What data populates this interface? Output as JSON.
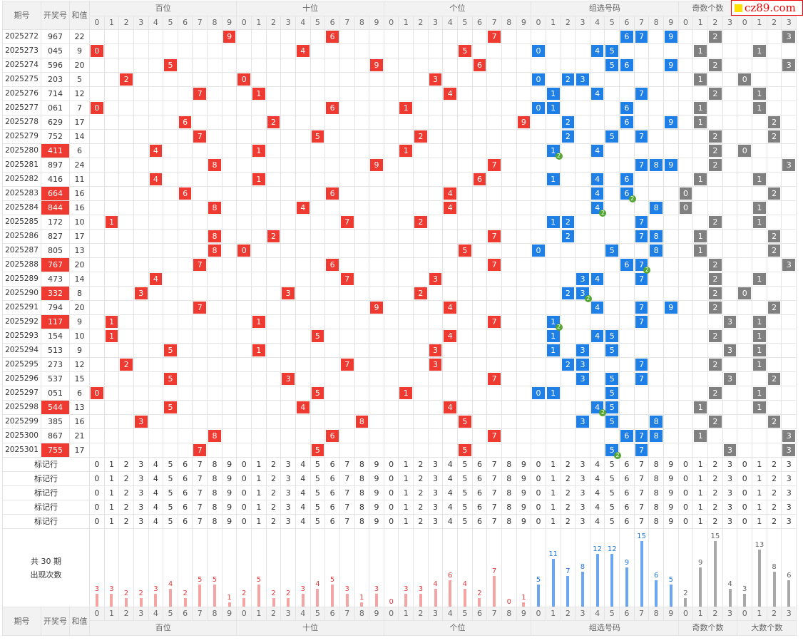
{
  "logo": {
    "text": "cz89.com"
  },
  "header": {
    "col_period": "期号",
    "col_number": "开奖号",
    "col_sum": "和值",
    "groups": [
      "百位",
      "十位",
      "个位",
      "组选号码",
      "奇数个数"
    ],
    "groups_bottom": [
      "百位",
      "十位",
      "个位",
      "组选号码",
      "奇数个数",
      "大数个数"
    ],
    "digits10": [
      "0",
      "1",
      "2",
      "3",
      "4",
      "5",
      "6",
      "7",
      "8",
      "9"
    ],
    "digits4": [
      "0",
      "1",
      "2",
      "3"
    ]
  },
  "rows": [
    {
      "period": "2025272",
      "number": "967",
      "sum": "22",
      "red": false,
      "b": 9,
      "s": 6,
      "g": 7,
      "grp": [
        6,
        7,
        9
      ],
      "dbl": null,
      "odd": 2,
      "big": 3
    },
    {
      "period": "2025273",
      "number": "045",
      "sum": "9",
      "red": false,
      "b": 0,
      "s": 4,
      "g": 5,
      "grp": [
        0,
        4,
        5
      ],
      "dbl": null,
      "odd": 1,
      "big": 1
    },
    {
      "period": "2025274",
      "number": "596",
      "sum": "20",
      "red": false,
      "b": 5,
      "s": 9,
      "g": 6,
      "grp": [
        5,
        6,
        9
      ],
      "dbl": null,
      "odd": 2,
      "big": 3
    },
    {
      "period": "2025275",
      "number": "203",
      "sum": "5",
      "red": false,
      "b": 2,
      "s": 0,
      "g": 3,
      "grp": [
        0,
        2,
        3
      ],
      "dbl": null,
      "odd": 1,
      "big": 0
    },
    {
      "period": "2025276",
      "number": "714",
      "sum": "12",
      "red": false,
      "b": 7,
      "s": 1,
      "g": 4,
      "grp": [
        1,
        4,
        7
      ],
      "dbl": null,
      "odd": 2,
      "big": 1
    },
    {
      "period": "2025277",
      "number": "061",
      "sum": "7",
      "red": false,
      "b": 0,
      "s": 6,
      "g": 1,
      "grp": [
        0,
        1,
        6
      ],
      "dbl": null,
      "odd": 1,
      "big": 1
    },
    {
      "period": "2025278",
      "number": "629",
      "sum": "17",
      "red": false,
      "b": 6,
      "s": 2,
      "g": 9,
      "grp": [
        2,
        6,
        9
      ],
      "dbl": null,
      "odd": 1,
      "big": 2
    },
    {
      "period": "2025279",
      "number": "752",
      "sum": "14",
      "red": false,
      "b": 7,
      "s": 5,
      "g": 2,
      "grp": [
        2,
        5,
        7
      ],
      "dbl": null,
      "odd": 2,
      "big": 2
    },
    {
      "period": "2025280",
      "number": "411",
      "sum": "6",
      "red": true,
      "b": 4,
      "s": 1,
      "g": 1,
      "grp": [
        1,
        4
      ],
      "dbl": 1,
      "odd": 2,
      "big": 0
    },
    {
      "period": "2025281",
      "number": "897",
      "sum": "24",
      "red": false,
      "b": 8,
      "s": 9,
      "g": 7,
      "grp": [
        7,
        8,
        9
      ],
      "dbl": null,
      "odd": 2,
      "big": 3
    },
    {
      "period": "2025282",
      "number": "416",
      "sum": "11",
      "red": false,
      "b": 4,
      "s": 1,
      "g": 6,
      "grp": [
        1,
        4,
        6
      ],
      "dbl": null,
      "odd": 1,
      "big": 1
    },
    {
      "period": "2025283",
      "number": "664",
      "sum": "16",
      "red": true,
      "b": 6,
      "s": 6,
      "g": 4,
      "grp": [
        4,
        6
      ],
      "dbl": 6,
      "odd": 0,
      "big": 2
    },
    {
      "period": "2025284",
      "number": "844",
      "sum": "16",
      "red": true,
      "b": 8,
      "s": 4,
      "g": 4,
      "grp": [
        4,
        8
      ],
      "dbl": 4,
      "odd": 0,
      "big": 1
    },
    {
      "period": "2025285",
      "number": "172",
      "sum": "10",
      "red": false,
      "b": 1,
      "s": 7,
      "g": 2,
      "grp": [
        1,
        2,
        7
      ],
      "dbl": null,
      "odd": 2,
      "big": 1
    },
    {
      "period": "2025286",
      "number": "827",
      "sum": "17",
      "red": false,
      "b": 8,
      "s": 2,
      "g": 7,
      "grp": [
        2,
        7,
        8
      ],
      "dbl": null,
      "odd": 1,
      "big": 2
    },
    {
      "period": "2025287",
      "number": "805",
      "sum": "13",
      "red": false,
      "b": 8,
      "s": 0,
      "g": 5,
      "grp": [
        0,
        5,
        8
      ],
      "dbl": null,
      "odd": 1,
      "big": 2
    },
    {
      "period": "2025288",
      "number": "767",
      "sum": "20",
      "red": true,
      "b": 7,
      "s": 6,
      "g": 7,
      "grp": [
        6,
        7
      ],
      "dbl": 7,
      "odd": 2,
      "big": 3
    },
    {
      "period": "2025289",
      "number": "473",
      "sum": "14",
      "red": false,
      "b": 4,
      "s": 7,
      "g": 3,
      "grp": [
        3,
        4,
        7
      ],
      "dbl": null,
      "odd": 2,
      "big": 1
    },
    {
      "period": "2025290",
      "number": "332",
      "sum": "8",
      "red": true,
      "b": 3,
      "s": 3,
      "g": 2,
      "grp": [
        2,
        3
      ],
      "dbl": 3,
      "odd": 2,
      "big": 0
    },
    {
      "period": "2025291",
      "number": "794",
      "sum": "20",
      "red": false,
      "b": 7,
      "s": 9,
      "g": 4,
      "grp": [
        4,
        7,
        9
      ],
      "dbl": null,
      "odd": 2,
      "big": 2
    },
    {
      "period": "2025292",
      "number": "117",
      "sum": "9",
      "red": true,
      "b": 1,
      "s": 1,
      "g": 7,
      "grp": [
        1,
        7
      ],
      "dbl": 1,
      "odd": 3,
      "big": 1
    },
    {
      "period": "2025293",
      "number": "154",
      "sum": "10",
      "red": false,
      "b": 1,
      "s": 5,
      "g": 4,
      "grp": [
        1,
        4,
        5
      ],
      "dbl": null,
      "odd": 2,
      "big": 1
    },
    {
      "period": "2025294",
      "number": "513",
      "sum": "9",
      "red": false,
      "b": 5,
      "s": 1,
      "g": 3,
      "grp": [
        1,
        3,
        5
      ],
      "dbl": null,
      "odd": 3,
      "big": 1
    },
    {
      "period": "2025295",
      "number": "273",
      "sum": "12",
      "red": false,
      "b": 2,
      "s": 7,
      "g": 3,
      "grp": [
        2,
        3,
        7
      ],
      "dbl": null,
      "odd": 2,
      "big": 1
    },
    {
      "period": "2025296",
      "number": "537",
      "sum": "15",
      "red": false,
      "b": 5,
      "s": 3,
      "g": 7,
      "grp": [
        3,
        5,
        7
      ],
      "dbl": null,
      "odd": 3,
      "big": 2
    },
    {
      "period": "2025297",
      "number": "051",
      "sum": "6",
      "red": false,
      "b": 0,
      "s": 5,
      "g": 1,
      "grp": [
        0,
        1,
        5
      ],
      "dbl": null,
      "odd": 2,
      "big": 1
    },
    {
      "period": "2025298",
      "number": "544",
      "sum": "13",
      "red": true,
      "b": 5,
      "s": 4,
      "g": 4,
      "grp": [
        4,
        5
      ],
      "dbl": 4,
      "odd": 1,
      "big": 1
    },
    {
      "period": "2025299",
      "number": "385",
      "sum": "16",
      "red": false,
      "b": 3,
      "s": 8,
      "g": 5,
      "grp": [
        3,
        5,
        8
      ],
      "dbl": null,
      "odd": 2,
      "big": 2
    },
    {
      "period": "2025300",
      "number": "867",
      "sum": "21",
      "red": false,
      "b": 8,
      "s": 6,
      "g": 7,
      "grp": [
        6,
        7,
        8
      ],
      "dbl": null,
      "odd": 1,
      "big": 3
    },
    {
      "period": "2025301",
      "number": "755",
      "sum": "17",
      "red": true,
      "b": 7,
      "s": 5,
      "g": 5,
      "grp": [
        5,
        7
      ],
      "dbl": 5,
      "odd": 3,
      "big": 3
    }
  ],
  "marker_rows": {
    "label": "标记行",
    "count": 5
  },
  "stats": {
    "label_line1": "共 30 期",
    "label_line2": "出现次数",
    "bai": [
      3,
      3,
      2,
      2,
      3,
      4,
      2,
      5,
      5,
      1
    ],
    "shi": [
      2,
      5,
      2,
      2,
      3,
      4,
      5,
      3,
      1,
      3
    ],
    "ge": [
      0,
      3,
      3,
      4,
      6,
      4,
      2,
      7,
      0,
      1
    ],
    "grp": [
      5,
      11,
      7,
      8,
      12,
      12,
      9,
      15,
      6,
      5
    ],
    "odd": [
      2,
      9,
      15,
      4
    ],
    "big": [
      3,
      13,
      8,
      6
    ]
  },
  "colors": {
    "red": "#ef3a32",
    "blue": "#1e7fe6",
    "gray": "#808080",
    "double_badge": "#55a532"
  }
}
